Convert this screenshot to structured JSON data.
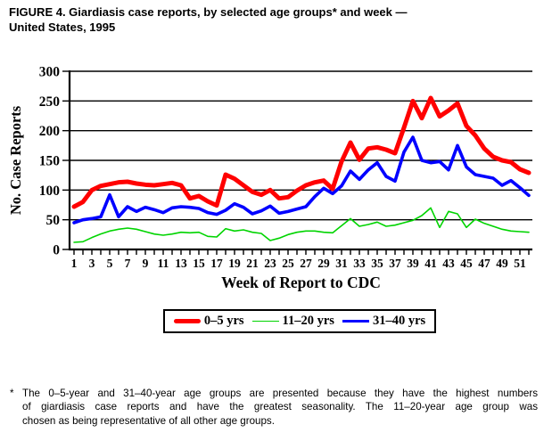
{
  "figure": {
    "title_line1": "FIGURE 4. Giardiasis case reports, by selected age groups* and week —",
    "title_line2": "United States, 1995",
    "footnote": {
      "marker": "*",
      "lines": [
        "The 0–5-year and 31–40-year age groups are presented because they have the highest numbers",
        "of giardiasis case reports and have the greatest seasonality. The 11–20-year age group was",
        "chosen as being representative of all other age groups."
      ]
    }
  },
  "chart_data": {
    "type": "line",
    "title": "FIGURE 4. Giardiasis case reports, by selected age groups* and week — United States, 1995",
    "xlabel": "Week of Report to CDC",
    "ylabel": "No. Case Reports",
    "ylim": [
      0,
      300
    ],
    "yticks": [
      0,
      50,
      100,
      150,
      200,
      250,
      300
    ],
    "xticks": [
      1,
      3,
      5,
      7,
      9,
      11,
      13,
      15,
      17,
      19,
      21,
      23,
      25,
      27,
      29,
      31,
      33,
      35,
      37,
      39,
      41,
      43,
      45,
      47,
      49,
      51
    ],
    "grid": "horizontal-black",
    "legend_position": "bottom-center-boxed",
    "weeks": [
      1,
      2,
      3,
      4,
      5,
      6,
      7,
      8,
      9,
      10,
      11,
      12,
      13,
      14,
      15,
      16,
      17,
      18,
      19,
      20,
      21,
      22,
      23,
      24,
      25,
      26,
      27,
      28,
      29,
      30,
      31,
      32,
      33,
      34,
      35,
      36,
      37,
      38,
      39,
      40,
      41,
      42,
      43,
      44,
      45,
      46,
      47,
      48,
      49,
      50,
      51,
      52
    ],
    "series": [
      {
        "name": "0–5 yrs",
        "color": "#ff0000",
        "width": 5,
        "values": [
          72,
          80,
          100,
          107,
          110,
          113,
          114,
          111,
          109,
          108,
          110,
          112,
          108,
          86,
          90,
          81,
          74,
          126,
          119,
          108,
          97,
          92,
          100,
          86,
          88,
          99,
          108,
          113,
          116,
          102,
          148,
          180,
          151,
          170,
          172,
          168,
          162,
          205,
          250,
          221,
          255,
          224,
          234,
          246,
          208,
          192,
          170,
          156,
          150,
          147,
          135,
          129
        ]
      },
      {
        "name": "11–20 yrs",
        "color": "#00d400",
        "width": 1.6,
        "values": [
          12,
          13,
          20,
          26,
          31,
          34,
          36,
          34,
          30,
          26,
          24,
          26,
          29,
          28,
          29,
          22,
          21,
          35,
          31,
          33,
          29,
          27,
          15,
          19,
          25,
          29,
          31,
          31,
          29,
          28,
          40,
          52,
          39,
          42,
          46,
          39,
          41,
          45,
          49,
          57,
          70,
          37,
          64,
          60,
          37,
          51,
          44,
          39,
          34,
          31,
          30,
          29
        ]
      },
      {
        "name": "31–40 yrs",
        "color": "#0000ff",
        "width": 3.6,
        "values": [
          45,
          50,
          52,
          55,
          92,
          55,
          72,
          64,
          71,
          67,
          62,
          70,
          72,
          71,
          69,
          62,
          59,
          66,
          77,
          71,
          60,
          65,
          73,
          61,
          64,
          68,
          72,
          89,
          103,
          94,
          107,
          132,
          118,
          134,
          146,
          123,
          115,
          164,
          189,
          150,
          146,
          148,
          134,
          175,
          139,
          126,
          123,
          120,
          108,
          116,
          104,
          91
        ]
      }
    ]
  }
}
